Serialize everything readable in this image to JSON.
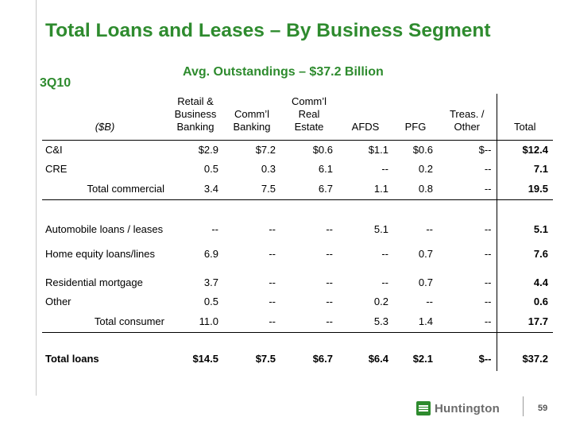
{
  "title": "Total Loans and Leases – By Business Segment",
  "subtitle": "Avg. Outstandings – $37.2 Billion",
  "period": "3Q10",
  "table": {
    "label_header": "($B)",
    "columns": [
      [
        "Retail &",
        "Business",
        "Banking"
      ],
      [
        "Comm’l",
        "Banking"
      ],
      [
        "Comm’l",
        "Real",
        "Estate"
      ],
      [
        "AFDS"
      ],
      [
        "PFG"
      ],
      [
        "Treas. /",
        "Other"
      ],
      [
        "Total"
      ]
    ],
    "rows": {
      "ci": {
        "label": "C&I",
        "values": [
          "$2.9",
          "$7.2",
          "$0.6",
          "$1.1",
          "$0.6",
          "$--",
          "$12.4"
        ]
      },
      "cre": {
        "label": "CRE",
        "values": [
          "0.5",
          "0.3",
          "6.1",
          "--",
          "0.2",
          "--",
          "7.1"
        ]
      },
      "total_commercial": {
        "label": "Total commercial",
        "values": [
          "3.4",
          "7.5",
          "6.7",
          "1.1",
          "0.8",
          "--",
          "19.5"
        ]
      },
      "auto": {
        "label": "Automobile loans / leases",
        "values": [
          "--",
          "--",
          "--",
          "5.1",
          "--",
          "--",
          "5.1"
        ]
      },
      "home_equity": {
        "label": "Home equity loans/lines",
        "values": [
          "6.9",
          "--",
          "--",
          "--",
          "0.7",
          "--",
          "7.6"
        ]
      },
      "residential": {
        "label": "Residential mortgage",
        "values": [
          "3.7",
          "--",
          "--",
          "--",
          "0.7",
          "--",
          "4.4"
        ]
      },
      "other": {
        "label": "Other",
        "values": [
          "0.5",
          "--",
          "--",
          "0.2",
          "--",
          "--",
          "0.6"
        ]
      },
      "total_consumer": {
        "label": "Total consumer",
        "values": [
          "11.0",
          "--",
          "--",
          "5.3",
          "1.4",
          "--",
          "17.7"
        ]
      },
      "total_loans": {
        "label": "Total loans",
        "values": [
          "$14.5",
          "$7.5",
          "$6.7",
          "$6.4",
          "$2.1",
          "$--",
          "$37.2"
        ]
      }
    }
  },
  "footer": {
    "logo_text": "Huntington",
    "page_number": "59",
    "brand_color": "#2e8b2e",
    "logo_icon": "huntington-bars-icon"
  }
}
